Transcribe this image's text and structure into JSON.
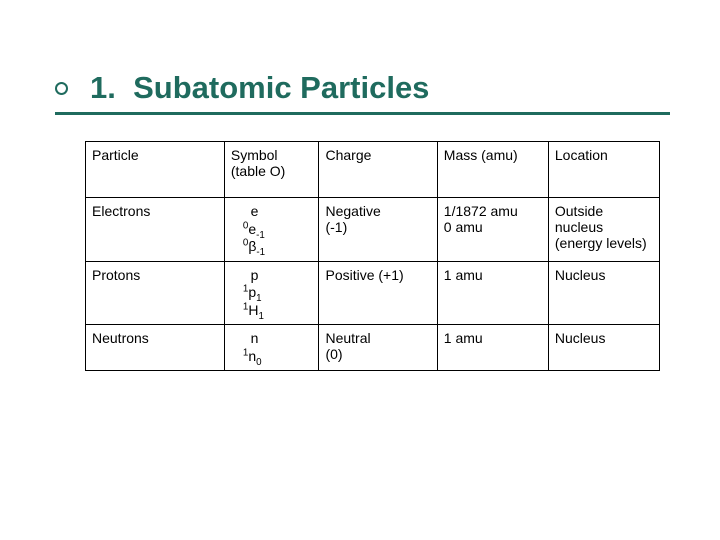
{
  "colors": {
    "teal": "#1f6b5e",
    "text": "#000000"
  },
  "title": {
    "number": "1.",
    "text": "Subatomic Particles"
  },
  "table": {
    "columns": [
      {
        "header": "Particle"
      },
      {
        "header": "Symbol (table O)"
      },
      {
        "header": "Charge"
      },
      {
        "header": "Mass (amu)"
      },
      {
        "header": "Location"
      }
    ],
    "rows": [
      {
        "particle": "Electrons",
        "symbol": {
          "line1": "e",
          "line2_pre": "0",
          "line2_main": "e",
          "line2_sub": "-1",
          "line3_pre": "0",
          "line3_main": "β",
          "line3_sub": "-1"
        },
        "charge_line1": "Negative",
        "charge_line2": "(-1)",
        "mass_line1": "1/1872 amu",
        "mass_line2": "0 amu",
        "location": "Outside nucleus (energy levels)"
      },
      {
        "particle": "Protons",
        "symbol": {
          "line1": "p",
          "line2_pre": "1",
          "line2_main": "p",
          "line2_sub": "1",
          "line3_pre": "1",
          "line3_main": "H",
          "line3_sub": "1"
        },
        "charge_line1": "Positive  (+1)",
        "charge_line2": "",
        "mass_line1": "1 amu",
        "mass_line2": "",
        "location": "Nucleus"
      },
      {
        "particle": "Neutrons",
        "symbol": {
          "line1": "n",
          "line2_pre": "1",
          "line2_main": "n",
          "line2_sub": "0",
          "line3_pre": "",
          "line3_main": "",
          "line3_sub": ""
        },
        "charge_line1": "Neutral",
        "charge_line2": "(0)",
        "mass_line1": "1 amu",
        "mass_line2": "",
        "location": "Nucleus"
      }
    ]
  }
}
